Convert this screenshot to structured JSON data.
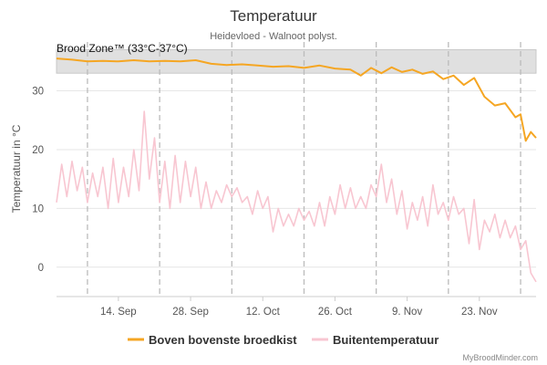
{
  "chart_data": {
    "type": "line",
    "title": "Temperatuur",
    "subtitle": "Heidevloed - Walnoot polyst.",
    "ylabel": "Temperatuur in °C",
    "xlabel": "",
    "ylim": [
      -5,
      38
    ],
    "yticks": [
      0,
      10,
      20,
      30
    ],
    "xlim": [
      "2023-09-02",
      "2023-12-04"
    ],
    "xticks": [
      {
        "date": "2023-09-14",
        "label": "14. Sep"
      },
      {
        "date": "2023-09-28",
        "label": "28. Sep"
      },
      {
        "date": "2023-10-12",
        "label": "12. Oct"
      },
      {
        "date": "2023-10-26",
        "label": "26. Oct"
      },
      {
        "date": "2023-11-09",
        "label": "9. Nov"
      },
      {
        "date": "2023-11-23",
        "label": "23. Nov"
      }
    ],
    "vertical_markers": [
      "2023-09-08",
      "2023-09-22",
      "2023-10-06",
      "2023-10-20",
      "2023-11-03",
      "2023-11-17",
      "2023-12-01"
    ],
    "band": {
      "label": "Brood Zone™ (33°C-37°C)",
      "from": 33,
      "to": 37
    },
    "grid": true,
    "legend_position": "bottom",
    "series": [
      {
        "name": "Boven bovenste broedkist",
        "color": "#f5a623",
        "points": [
          [
            "2023-09-02",
            35.5
          ],
          [
            "2023-09-05",
            35.3
          ],
          [
            "2023-09-08",
            35.0
          ],
          [
            "2023-09-11",
            35.1
          ],
          [
            "2023-09-14",
            35.0
          ],
          [
            "2023-09-17",
            35.2
          ],
          [
            "2023-09-20",
            35.0
          ],
          [
            "2023-09-23",
            35.1
          ],
          [
            "2023-09-26",
            35.0
          ],
          [
            "2023-09-29",
            35.2
          ],
          [
            "2023-10-02",
            34.6
          ],
          [
            "2023-10-05",
            34.4
          ],
          [
            "2023-10-08",
            34.5
          ],
          [
            "2023-10-11",
            34.3
          ],
          [
            "2023-10-14",
            34.1
          ],
          [
            "2023-10-17",
            34.2
          ],
          [
            "2023-10-20",
            33.9
          ],
          [
            "2023-10-23",
            34.3
          ],
          [
            "2023-10-26",
            33.8
          ],
          [
            "2023-10-29",
            33.6
          ],
          [
            "2023-10-31",
            32.6
          ],
          [
            "2023-11-02",
            33.9
          ],
          [
            "2023-11-04",
            33.0
          ],
          [
            "2023-11-06",
            34.0
          ],
          [
            "2023-11-08",
            33.2
          ],
          [
            "2023-11-10",
            33.6
          ],
          [
            "2023-11-12",
            32.9
          ],
          [
            "2023-11-14",
            33.3
          ],
          [
            "2023-11-16",
            32.0
          ],
          [
            "2023-11-18",
            32.6
          ],
          [
            "2023-11-20",
            31.0
          ],
          [
            "2023-11-22",
            32.2
          ],
          [
            "2023-11-24",
            29.0
          ],
          [
            "2023-11-26",
            27.5
          ],
          [
            "2023-11-28",
            27.9
          ],
          [
            "2023-11-30",
            25.5
          ],
          [
            "2023-12-01",
            26.0
          ],
          [
            "2023-12-02",
            21.5
          ],
          [
            "2023-12-03",
            23.0
          ],
          [
            "2023-12-04",
            22.0
          ]
        ]
      },
      {
        "name": "Buitentemperatuur",
        "color": "#f8c6d1",
        "points": [
          [
            "2023-09-02",
            11.0
          ],
          [
            "2023-09-03",
            17.5
          ],
          [
            "2023-09-04",
            12.0
          ],
          [
            "2023-09-05",
            18.0
          ],
          [
            "2023-09-06",
            13.0
          ],
          [
            "2023-09-07",
            17.0
          ],
          [
            "2023-09-08",
            11.0
          ],
          [
            "2023-09-09",
            16.0
          ],
          [
            "2023-09-10",
            12.0
          ],
          [
            "2023-09-11",
            17.0
          ],
          [
            "2023-09-12",
            10.0
          ],
          [
            "2023-09-13",
            18.5
          ],
          [
            "2023-09-14",
            11.0
          ],
          [
            "2023-09-15",
            17.0
          ],
          [
            "2023-09-16",
            12.0
          ],
          [
            "2023-09-17",
            20.0
          ],
          [
            "2023-09-18",
            13.0
          ],
          [
            "2023-09-19",
            26.5
          ],
          [
            "2023-09-20",
            15.0
          ],
          [
            "2023-09-21",
            22.0
          ],
          [
            "2023-09-22",
            11.0
          ],
          [
            "2023-09-23",
            18.0
          ],
          [
            "2023-09-24",
            10.0
          ],
          [
            "2023-09-25",
            19.0
          ],
          [
            "2023-09-26",
            11.0
          ],
          [
            "2023-09-27",
            18.0
          ],
          [
            "2023-09-28",
            12.0
          ],
          [
            "2023-09-29",
            17.0
          ],
          [
            "2023-09-30",
            10.0
          ],
          [
            "2023-10-01",
            14.5
          ],
          [
            "2023-10-02",
            10.0
          ],
          [
            "2023-10-03",
            13.0
          ],
          [
            "2023-10-04",
            11.0
          ],
          [
            "2023-10-05",
            14.0
          ],
          [
            "2023-10-06",
            12.0
          ],
          [
            "2023-10-07",
            13.5
          ],
          [
            "2023-10-08",
            11.0
          ],
          [
            "2023-10-09",
            12.0
          ],
          [
            "2023-10-10",
            9.0
          ],
          [
            "2023-10-11",
            13.0
          ],
          [
            "2023-10-12",
            10.0
          ],
          [
            "2023-10-13",
            12.0
          ],
          [
            "2023-10-14",
            6.0
          ],
          [
            "2023-10-15",
            10.0
          ],
          [
            "2023-10-16",
            7.0
          ],
          [
            "2023-10-17",
            9.0
          ],
          [
            "2023-10-18",
            7.0
          ],
          [
            "2023-10-19",
            10.0
          ],
          [
            "2023-10-20",
            8.0
          ],
          [
            "2023-10-21",
            9.5
          ],
          [
            "2023-10-22",
            7.0
          ],
          [
            "2023-10-23",
            11.0
          ],
          [
            "2023-10-24",
            7.0
          ],
          [
            "2023-10-25",
            12.0
          ],
          [
            "2023-10-26",
            9.0
          ],
          [
            "2023-10-27",
            14.0
          ],
          [
            "2023-10-28",
            10.0
          ],
          [
            "2023-10-29",
            13.5
          ],
          [
            "2023-10-30",
            10.0
          ],
          [
            "2023-10-31",
            12.0
          ],
          [
            "2023-11-01",
            10.0
          ],
          [
            "2023-11-02",
            14.0
          ],
          [
            "2023-11-03",
            12.0
          ],
          [
            "2023-11-04",
            17.5
          ],
          [
            "2023-11-05",
            11.0
          ],
          [
            "2023-11-06",
            15.0
          ],
          [
            "2023-11-07",
            9.0
          ],
          [
            "2023-11-08",
            13.0
          ],
          [
            "2023-11-09",
            6.5
          ],
          [
            "2023-11-10",
            11.0
          ],
          [
            "2023-11-11",
            8.0
          ],
          [
            "2023-11-12",
            12.0
          ],
          [
            "2023-11-13",
            7.0
          ],
          [
            "2023-11-14",
            14.0
          ],
          [
            "2023-11-15",
            9.0
          ],
          [
            "2023-11-16",
            11.0
          ],
          [
            "2023-11-17",
            8.0
          ],
          [
            "2023-11-18",
            12.0
          ],
          [
            "2023-11-19",
            9.0
          ],
          [
            "2023-11-20",
            10.0
          ],
          [
            "2023-11-21",
            4.0
          ],
          [
            "2023-11-22",
            11.5
          ],
          [
            "2023-11-23",
            3.0
          ],
          [
            "2023-11-24",
            8.0
          ],
          [
            "2023-11-25",
            6.0
          ],
          [
            "2023-11-26",
            9.0
          ],
          [
            "2023-11-27",
            5.0
          ],
          [
            "2023-11-28",
            8.0
          ],
          [
            "2023-11-29",
            5.0
          ],
          [
            "2023-11-30",
            7.0
          ],
          [
            "2023-12-01",
            3.0
          ],
          [
            "2023-12-02",
            4.5
          ],
          [
            "2023-12-03",
            -1.0
          ],
          [
            "2023-12-04",
            -2.5
          ]
        ]
      }
    ]
  },
  "credit": "MyBroodMinder.com"
}
